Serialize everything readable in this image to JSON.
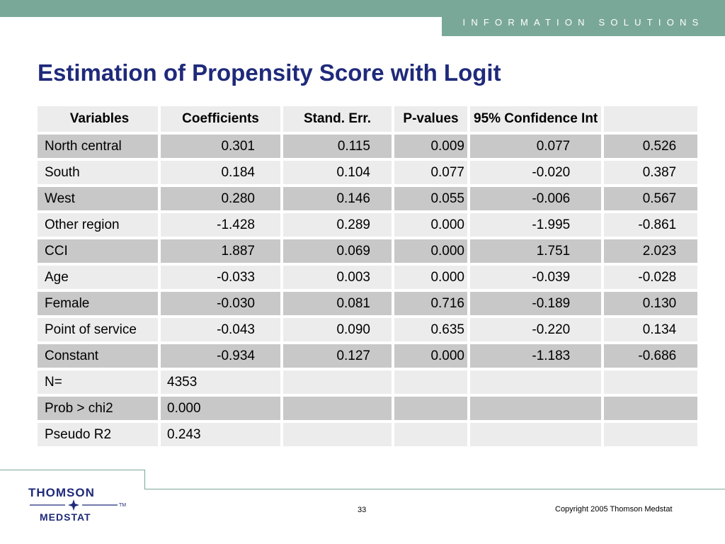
{
  "header": {
    "banner": "INFORMATION SOLUTIONS",
    "title": "Estimation of Propensity Score with Logit"
  },
  "table": {
    "columns": [
      "Variables",
      "Coefficients",
      "Stand. Err.",
      "P-values",
      "95% Confidence Int",
      ""
    ],
    "rows": [
      [
        "North central",
        "0.301",
        "0.115",
        "0.009",
        "0.077",
        "0.526"
      ],
      [
        "South",
        "0.184",
        "0.104",
        "0.077",
        "-0.020",
        "0.387"
      ],
      [
        "West",
        "0.280",
        "0.146",
        "0.055",
        "-0.006",
        "0.567"
      ],
      [
        "Other region",
        "-1.428",
        "0.289",
        "0.000",
        "-1.995",
        "-0.861"
      ],
      [
        "CCI",
        "1.887",
        "0.069",
        "0.000",
        "1.751",
        "2.023"
      ],
      [
        "Age",
        "-0.033",
        "0.003",
        "0.000",
        "-0.039",
        "-0.028"
      ],
      [
        "Female",
        "-0.030",
        "0.081",
        "0.716",
        "-0.189",
        "0.130"
      ],
      [
        "Point of service",
        "-0.043",
        "0.090",
        "0.635",
        "-0.220",
        "0.134"
      ],
      [
        "Constant",
        "-0.934",
        "0.127",
        "0.000",
        "-1.183",
        "-0.686"
      ]
    ],
    "stats": [
      [
        "N=",
        "4353"
      ],
      [
        "Prob > chi2",
        "0.000"
      ],
      [
        "Pseudo R2",
        "0.243"
      ]
    ]
  },
  "footer": {
    "logo_top": "THOMSON",
    "logo_bottom": "MEDSTAT",
    "logo_tm": "TM",
    "page_number": "33",
    "copyright": "Copyright 2005 Thomson Medstat"
  },
  "colors": {
    "band": "#7aa898",
    "title": "#1f2a7a",
    "row_shade": "#c8c8c8",
    "row_plain": "#ececec"
  }
}
